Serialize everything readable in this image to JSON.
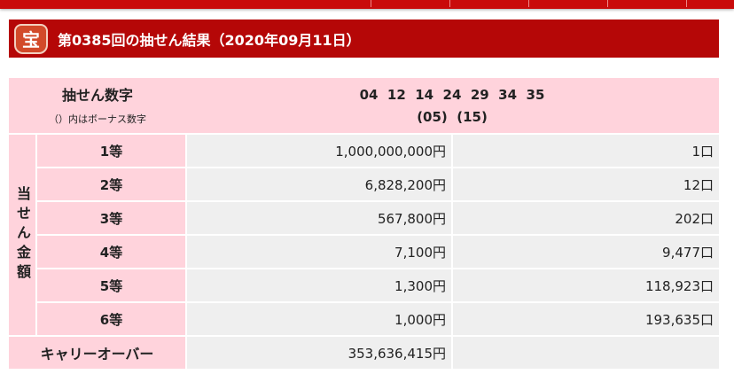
{
  "header": {
    "title": "第0385回の抽せん結果（2020年09月11日）",
    "logo": "宝"
  },
  "numbers": {
    "label": "抽せん数字",
    "note": "（）内はボーナス数字",
    "main": "04  12  14  24  29  34  35",
    "bonus": "(05)  (15)"
  },
  "side_label": "当せん金額",
  "prizes": [
    {
      "grade": "1等",
      "amount": "1,000,000,000円",
      "count": "1口"
    },
    {
      "grade": "2等",
      "amount": "6,828,200円",
      "count": "12口"
    },
    {
      "grade": "3等",
      "amount": "567,800円",
      "count": "202口"
    },
    {
      "grade": "4等",
      "amount": "7,100円",
      "count": "9,477口"
    },
    {
      "grade": "5等",
      "amount": "1,300円",
      "count": "118,923口"
    },
    {
      "grade": "6等",
      "amount": "1,000円",
      "count": "193,635口"
    }
  ],
  "carryover": {
    "label": "キャリーオーバー",
    "amount": "353,636,415円"
  },
  "colors": {
    "brand": "#b50707",
    "pink": "#ffd3dc",
    "grey": "#efefef"
  }
}
